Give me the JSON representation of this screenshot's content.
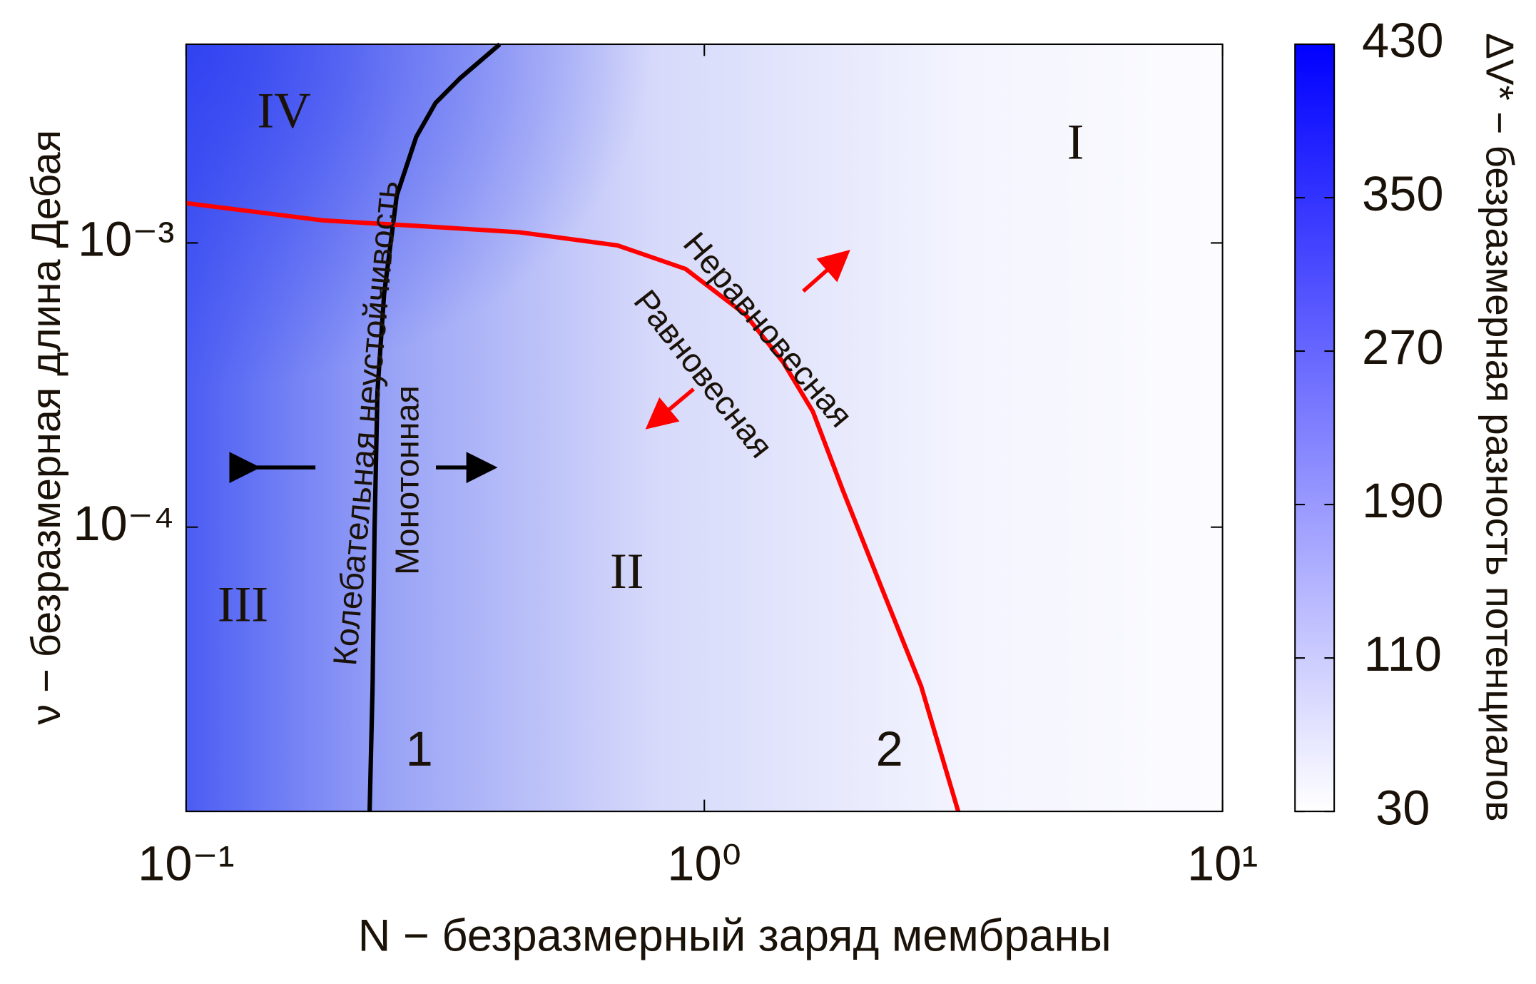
{
  "chart_data": {
    "type": "line",
    "xlabel": "N − безразмерный заряд мембраны",
    "ylabel": "ν − безразмерная длина Дебая",
    "xscale": "log",
    "yscale": "log",
    "xlim": [
      0.1,
      10
    ],
    "ylim": [
      1e-05,
      0.005
    ],
    "xticks": [
      {
        "value": 0.1,
        "label": "10⁻¹"
      },
      {
        "value": 1,
        "label": "10⁰"
      },
      {
        "value": 10,
        "label": "10¹"
      }
    ],
    "yticks": [
      {
        "value": 0.0001,
        "label": "10⁻⁴"
      },
      {
        "value": 0.001,
        "label": "10⁻³"
      }
    ],
    "series": [
      {
        "color": "#000000",
        "x": [
          0.226,
          0.229,
          0.231,
          0.234,
          0.241,
          0.255,
          0.278,
          0.303,
          0.338,
          0.403
        ],
        "values": [
          1e-05,
          2.76e-05,
          9.8e-05,
          0.0003,
          0.00066,
          0.00147,
          0.00236,
          0.00311,
          0.0038,
          0.005
        ]
      },
      {
        "color": "#ff0000",
        "x": [
          0.1,
          0.184,
          0.297,
          0.44,
          0.68,
          0.92,
          1.2,
          1.42,
          1.62,
          1.85,
          2.2,
          2.62,
          3.09
        ],
        "values": [
          0.00138,
          0.0012,
          0.00114,
          0.00109,
          0.00098,
          0.00081,
          0.00056,
          0.00038,
          0.000255,
          0.000135,
          6.1e-05,
          2.76e-05,
          1e-05
        ]
      }
    ],
    "annotations": [
      "I",
      "II",
      "III",
      "IV",
      "1",
      "2",
      "Колебательная неустойчивость",
      "Монотонная",
      "Неравновесная",
      "Равновесная"
    ],
    "colorbar": {
      "label": "ΔV* − безразмерная разность потенциалов",
      "lim": [
        30,
        430
      ],
      "ticks": [
        30,
        110,
        190,
        270,
        350,
        430
      ],
      "colors": [
        "#ffffff",
        "#0000ff"
      ]
    }
  }
}
